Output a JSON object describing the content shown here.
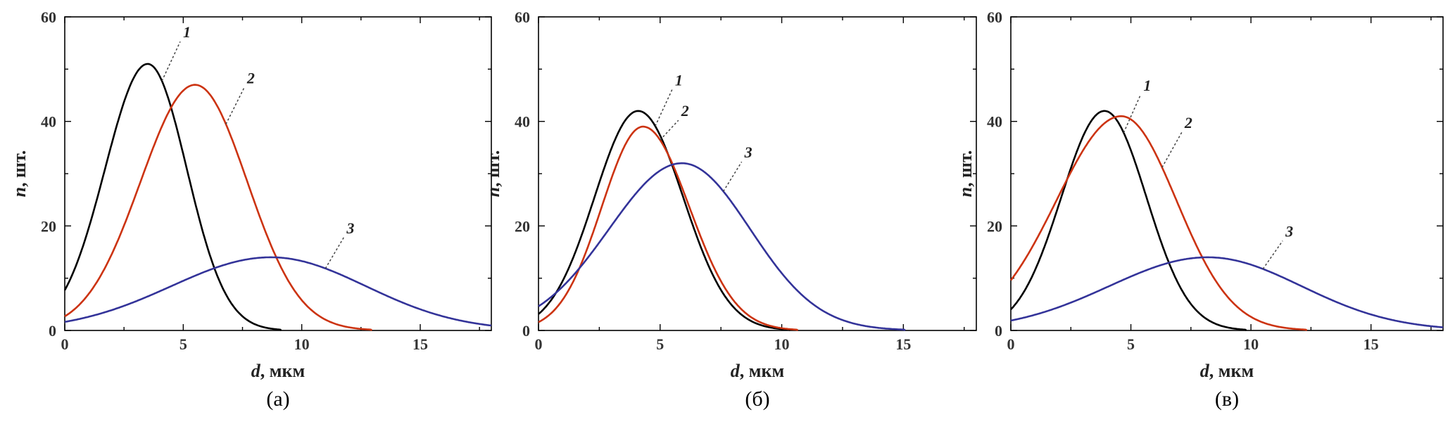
{
  "chart_data": [
    {
      "type": "line",
      "panel_label": "(а)",
      "xlabel_var": "d",
      "xlabel_unit": ", мкм",
      "ylabel_var": "n",
      "ylabel_unit": ", шт.",
      "xlim": [
        0,
        18
      ],
      "ylim": [
        0,
        60
      ],
      "x_ticks": [
        0,
        5,
        10,
        15
      ],
      "y_ticks": [
        0,
        20,
        40,
        60
      ],
      "series": [
        {
          "label": "1",
          "color": "#000000",
          "peak_x": 3.5,
          "peak_y": 51,
          "sigma_left": 1.8,
          "sigma_right": 1.65
        },
        {
          "label": "2",
          "color": "#cc3311",
          "peak_x": 5.5,
          "peak_y": 47,
          "sigma_left": 2.3,
          "sigma_right": 2.2
        },
        {
          "label": "3",
          "color": "#333399",
          "peak_x": 8.7,
          "peak_y": 14,
          "sigma_left": 4.2,
          "sigma_right": 4.0
        }
      ]
    },
    {
      "type": "line",
      "panel_label": "(б)",
      "xlabel_var": "d",
      "xlabel_unit": ", мкм",
      "ylabel_var": "n",
      "ylabel_unit": ", шт.",
      "xlim": [
        0,
        18
      ],
      "ylim": [
        0,
        60
      ],
      "x_ticks": [
        0,
        5,
        10,
        15
      ],
      "y_ticks": [
        0,
        20,
        40,
        60
      ],
      "series": [
        {
          "label": "1",
          "color": "#000000",
          "peak_x": 4.1,
          "peak_y": 42,
          "sigma_left": 1.8,
          "sigma_right": 1.85
        },
        {
          "label": "2",
          "color": "#cc3311",
          "peak_x": 4.3,
          "peak_y": 39,
          "sigma_left": 1.7,
          "sigma_right": 1.9
        },
        {
          "label": "3",
          "color": "#333399",
          "peak_x": 5.9,
          "peak_y": 32,
          "sigma_left": 3.0,
          "sigma_right": 2.8
        }
      ]
    },
    {
      "type": "line",
      "panel_label": "(в)",
      "xlabel_var": "d",
      "xlabel_unit": ", мкм",
      "ylabel_var": "n",
      "ylabel_unit": ", шт.",
      "xlim": [
        0,
        18
      ],
      "ylim": [
        0,
        60
      ],
      "x_ticks": [
        0,
        5,
        10,
        15
      ],
      "y_ticks": [
        0,
        20,
        40,
        60
      ],
      "series": [
        {
          "label": "1",
          "color": "#000000",
          "peak_x": 3.9,
          "peak_y": 42,
          "sigma_left": 1.8,
          "sigma_right": 1.75
        },
        {
          "label": "2",
          "color": "#cc3311",
          "peak_x": 4.6,
          "peak_y": 41,
          "sigma_left": 2.7,
          "sigma_right": 2.3
        },
        {
          "label": "3",
          "color": "#333399",
          "peak_x": 8.2,
          "peak_y": 14,
          "sigma_left": 4.1,
          "sigma_right": 3.9
        }
      ]
    }
  ]
}
